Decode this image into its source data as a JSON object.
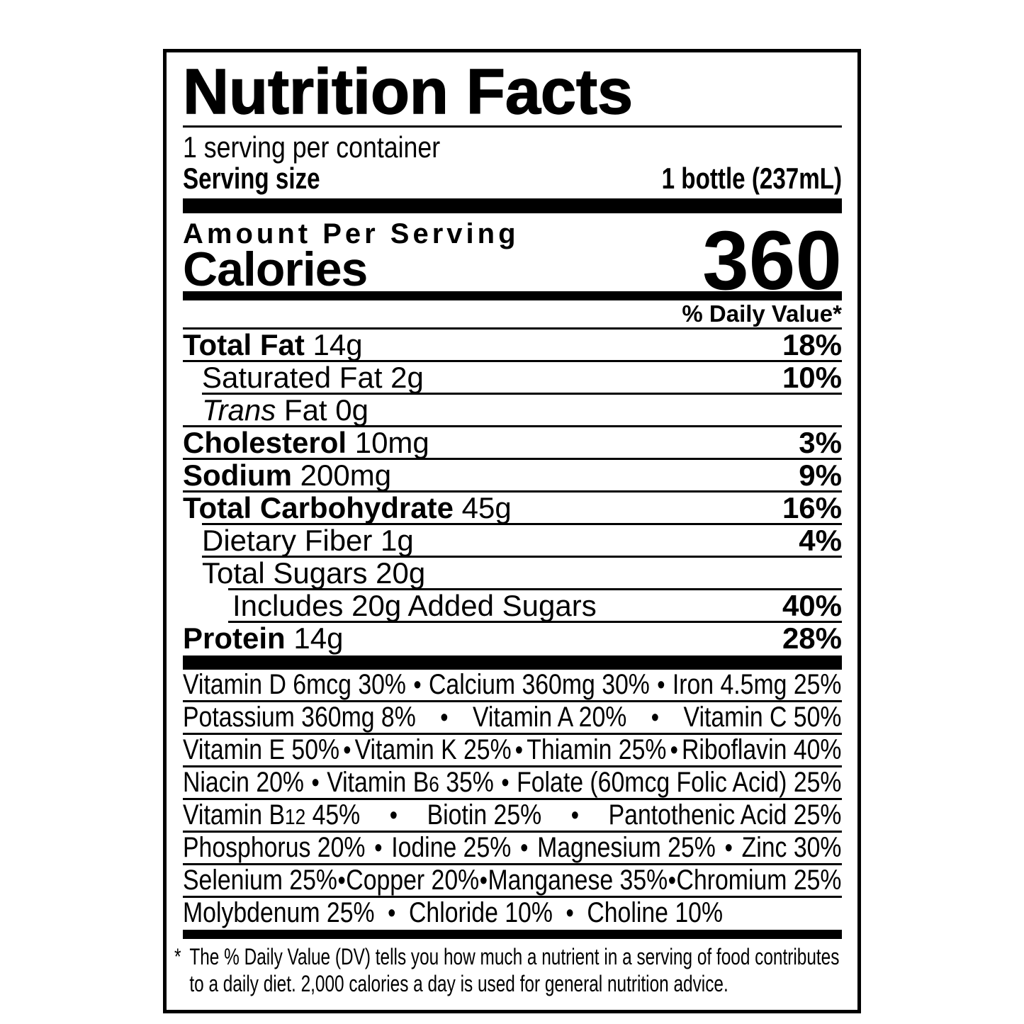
{
  "label": {
    "title": "Nutrition Facts",
    "servings_per_container": "1 serving per container",
    "serving_size_label": "Serving size",
    "serving_size_value": "1 bottle (237mL)",
    "amount_per_serving": "Amount Per Serving",
    "calories_label": "Calories",
    "calories_value": "360",
    "daily_value_header": "% Daily Value*",
    "bullet": "•",
    "nutrients": [
      {
        "lead": "Total Fat",
        "lead_style": "bold",
        "rest": "14g",
        "pct": "18%",
        "indent": 0,
        "rule_indent": 0
      },
      {
        "lead": "",
        "lead_style": "plain",
        "rest": "Saturated Fat 2g",
        "pct": "10%",
        "indent": 1,
        "rule_indent": 0
      },
      {
        "lead": "Trans",
        "lead_style": "italic",
        "rest": "Fat 0g",
        "pct": "",
        "indent": 1,
        "rule_indent": 1
      },
      {
        "lead": "Cholesterol",
        "lead_style": "bold",
        "rest": "10mg",
        "pct": "3%",
        "indent": 0,
        "rule_indent": 0
      },
      {
        "lead": "Sodium",
        "lead_style": "bold",
        "rest": "200mg",
        "pct": "9%",
        "indent": 0,
        "rule_indent": 0
      },
      {
        "lead": "Total Carbohydrate",
        "lead_style": "bold",
        "rest": "45g",
        "pct": "16%",
        "indent": 0,
        "rule_indent": 0
      },
      {
        "lead": "",
        "lead_style": "plain",
        "rest": "Dietary Fiber 1g",
        "pct": "4%",
        "indent": 1,
        "rule_indent": 1
      },
      {
        "lead": "",
        "lead_style": "plain",
        "rest": "Total Sugars 20g",
        "pct": "",
        "indent": 1,
        "rule_indent": 1
      },
      {
        "lead": "",
        "lead_style": "plain",
        "rest": "Includes 20g Added Sugars",
        "pct": "40%",
        "indent": 2,
        "rule_indent": 2
      },
      {
        "lead": "Protein",
        "lead_style": "bold",
        "rest": "14g",
        "pct": "28%",
        "indent": 0,
        "rule_indent": 2
      }
    ],
    "micronutrient_rows": [
      {
        "justify": true,
        "items": [
          [
            "Vitamin D 6mcg 30%"
          ],
          [
            "Calcium 360mg 30%"
          ],
          [
            "Iron 4.5mg 25%"
          ]
        ]
      },
      {
        "justify": true,
        "items": [
          [
            "Potassium 360mg 8%"
          ],
          [
            "Vitamin A 20%"
          ],
          [
            "Vitamin C 50%"
          ]
        ]
      },
      {
        "justify": true,
        "items": [
          [
            "Vitamin E 50%"
          ],
          [
            "Vitamin K 25%"
          ],
          [
            "Thiamin 25%"
          ],
          [
            "Riboflavin 40%"
          ]
        ]
      },
      {
        "justify": true,
        "items": [
          [
            "Niacin 20%"
          ],
          [
            "Vitamin B",
            {
              "small": "6"
            },
            " 35%"
          ],
          [
            "Folate (60mcg Folic Acid) 25%"
          ]
        ]
      },
      {
        "justify": true,
        "items": [
          [
            "Vitamin B",
            {
              "small": "12"
            },
            " 45%"
          ],
          [
            "Biotin 25%"
          ],
          [
            "Pantothenic Acid 25%"
          ]
        ]
      },
      {
        "justify": true,
        "items": [
          [
            "Phosphorus 20%"
          ],
          [
            "Iodine 25%"
          ],
          [
            "Magnesium 25%"
          ],
          [
            "Zinc 30%"
          ]
        ]
      },
      {
        "justify": true,
        "items": [
          [
            "Selenium 25%"
          ],
          [
            "Copper 20%"
          ],
          [
            "Manganese 35%"
          ],
          [
            "Chromium 25%"
          ]
        ]
      },
      {
        "justify": false,
        "items": [
          [
            "Molybdenum 25%"
          ],
          [
            "Chloride 10%"
          ],
          [
            "Choline 10%"
          ]
        ]
      }
    ],
    "footnote_marker": "*",
    "footnote_line1": "The % Daily Value (DV) tells you how much a nutrient in a serving of food contributes",
    "footnote_line2": "to a daily diet. 2,000 calories a day is used for general nutrition advice."
  }
}
